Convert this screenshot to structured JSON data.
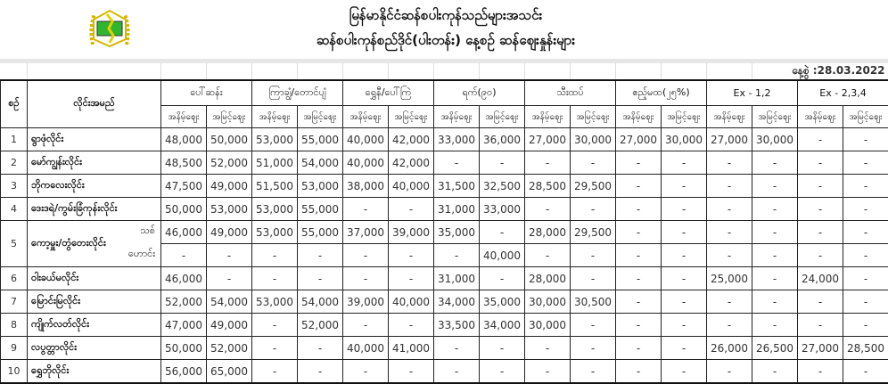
{
  "header": {
    "title_line1": "မြန်မာနိုင်ငံဆန်စပါးကုန်သည်များအသင်း",
    "title_line2": "ဆန်စပါးကုန်စည်ဒိုင်(ပါးတန်း) နေ့စဉ် ဆန်ဈေးနှုန်းများ",
    "date": "နေ့စွဲ :28.03.2022",
    "logo_colors": {
      "frame": "#d4b800",
      "field": "#2fb52f"
    }
  },
  "table": {
    "col_no": "စဉ်",
    "col_name": "လိုင်းအမည်",
    "groups": [
      "ပေါ်ဆန်း",
      "ကြာချွံ/တောင်ပျံ",
      "ရွှေနီ/ပေါ်ကြဲ",
      "ရက်(၉၀)",
      "သီးထပ်",
      "ဧည့်မထ(၂၅%)",
      "Ex - 1,2",
      "Ex - 2,3,4"
    ],
    "sub_low": "အနိမ့်ဈေး",
    "sub_high": "အမြင့်ဈေး",
    "rows": [
      {
        "no": "1",
        "name": "ရွာဖုံလိုင်း",
        "values": [
          [
            "48,000",
            "50,000",
            "53,000",
            "55,000",
            "40,000",
            "42,000",
            "33,000",
            "36,000",
            "27,000",
            "30,000",
            "27,000",
            "30,000",
            "27,000",
            "30,000",
            "-",
            "-"
          ]
        ]
      },
      {
        "no": "2",
        "name": "မော်ကျွန်းလိုင်း",
        "values": [
          [
            "48,500",
            "52,000",
            "51,000",
            "54,000",
            "40,000",
            "42,000",
            "-",
            "-",
            "-",
            "-",
            "-",
            "-",
            "-",
            "-",
            "-",
            "-"
          ]
        ]
      },
      {
        "no": "3",
        "name": "ဘိုကလေးလိုင်း",
        "values": [
          [
            "47,500",
            "49,000",
            "51,500",
            "53,000",
            "38,000",
            "40,000",
            "31,500",
            "32,500",
            "28,500",
            "29,500",
            "-",
            "-",
            "-",
            "-",
            "-",
            "-"
          ]
        ]
      },
      {
        "no": "4",
        "name": "ဒေးဒရဲ/ကွမ်းခြံကုန်းလိုင်း",
        "values": [
          [
            "50,000",
            "53,000",
            "53,000",
            "55,000",
            "-",
            "-",
            "31,000",
            "33,000",
            "-",
            "-",
            "-",
            "-",
            "-",
            "-",
            "-",
            "-"
          ]
        ]
      },
      {
        "no": "5",
        "name": "ကော့မှူး/တွံတေးလိုင်း",
        "subs": [
          "သစ်",
          "ဟောင်း"
        ],
        "values": [
          [
            "46,000",
            "49,000",
            "53,000",
            "55,000",
            "37,000",
            "39,000",
            "35,000",
            "-",
            "28,000",
            "29,500",
            "-",
            "-",
            "-",
            "-",
            "-",
            "-"
          ],
          [
            "-",
            "-",
            "-",
            "-",
            "-",
            "-",
            "-",
            "40,000",
            "-",
            "-",
            "-",
            "-",
            "-",
            "-",
            "-",
            "-"
          ]
        ]
      },
      {
        "no": "6",
        "name": "ဝါးခယ်မလိုင်း",
        "values": [
          [
            "46,000",
            "-",
            "-",
            "-",
            "-",
            "-",
            "31,000",
            "-",
            "28,000",
            "-",
            "-",
            "-",
            "25,000",
            "-",
            "24,000",
            "-"
          ]
        ]
      },
      {
        "no": "7",
        "name": "မြောင်းမြလိုင်း",
        "values": [
          [
            "52,000",
            "54,000",
            "53,000",
            "54,000",
            "39,000",
            "40,000",
            "34,000",
            "35,000",
            "30,000",
            "30,500",
            "-",
            "-",
            "-",
            "-",
            "-",
            "-"
          ]
        ]
      },
      {
        "no": "8",
        "name": "ကျိုက်လတ်လိုင်း",
        "values": [
          [
            "47,000",
            "49,000",
            "-",
            "52,000",
            "-",
            "-",
            "33,500",
            "34,000",
            "30,000",
            "-",
            "-",
            "-",
            "-",
            "-",
            "-",
            "-"
          ]
        ]
      },
      {
        "no": "9",
        "name": "လပွတ္တာလိုင်း",
        "values": [
          [
            "50,000",
            "52,000",
            "-",
            "-",
            "40,000",
            "41,000",
            "-",
            "-",
            "-",
            "-",
            "-",
            "-",
            "26,000",
            "26,500",
            "27,000",
            "28,500"
          ]
        ]
      },
      {
        "no": "10",
        "name": "ရွှေဘိုလိုင်း",
        "values": [
          [
            "56,000",
            "65,000",
            "-",
            "-",
            "-",
            "-",
            "-",
            "-",
            "-",
            "-",
            "-",
            "-",
            "-",
            "-",
            "-",
            "-"
          ]
        ]
      }
    ]
  }
}
